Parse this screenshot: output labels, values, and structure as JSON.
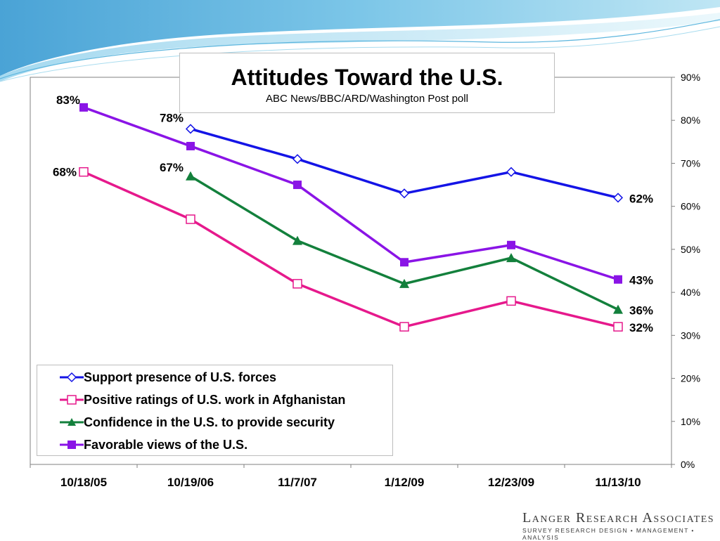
{
  "chart_data": {
    "type": "line",
    "title": "Attitudes Toward the U.S.",
    "subtitle": "ABC News/BBC/ARD/Washington Post poll",
    "categories": [
      "10/18/05",
      "10/19/06",
      "11/7/07",
      "1/12/09",
      "12/23/09",
      "11/13/10"
    ],
    "y_ticks": [
      "0%",
      "10%",
      "20%",
      "30%",
      "40%",
      "50%",
      "60%",
      "70%",
      "80%",
      "90%"
    ],
    "ylim": [
      0,
      90
    ],
    "y_axis_side": "right",
    "legend_position": "bottom-left",
    "series": [
      {
        "name": "Support presence of U.S. forces",
        "color": "#1414e6",
        "marker": "diamond-open",
        "values": [
          null,
          78,
          71,
          63,
          68,
          62
        ],
        "labels": {
          "1": "78%",
          "5": "62%"
        }
      },
      {
        "name": "Positive ratings of U.S. work in Afghanistan",
        "color": "#e6198c",
        "marker": "square-open",
        "values": [
          68,
          57,
          42,
          32,
          38,
          32
        ],
        "labels": {
          "0": "68%",
          "5": "32%"
        }
      },
      {
        "name": "Confidence in the U.S. to provide security",
        "color": "#13803c",
        "marker": "triangle",
        "values": [
          null,
          67,
          52,
          42,
          48,
          36
        ],
        "labels": {
          "1": "67%",
          "5": "36%"
        }
      },
      {
        "name": "Favorable views of the U.S.",
        "color": "#8a14e6",
        "marker": "square",
        "values": [
          83,
          74,
          65,
          47,
          51,
          43
        ],
        "labels": {
          "0": "83%",
          "5": "43%"
        }
      }
    ]
  },
  "branding": {
    "logo_line1": "Langer Research Associates",
    "logo_line2": "SURVEY RESEARCH DESIGN • MANAGEMENT • ANALYSIS"
  }
}
